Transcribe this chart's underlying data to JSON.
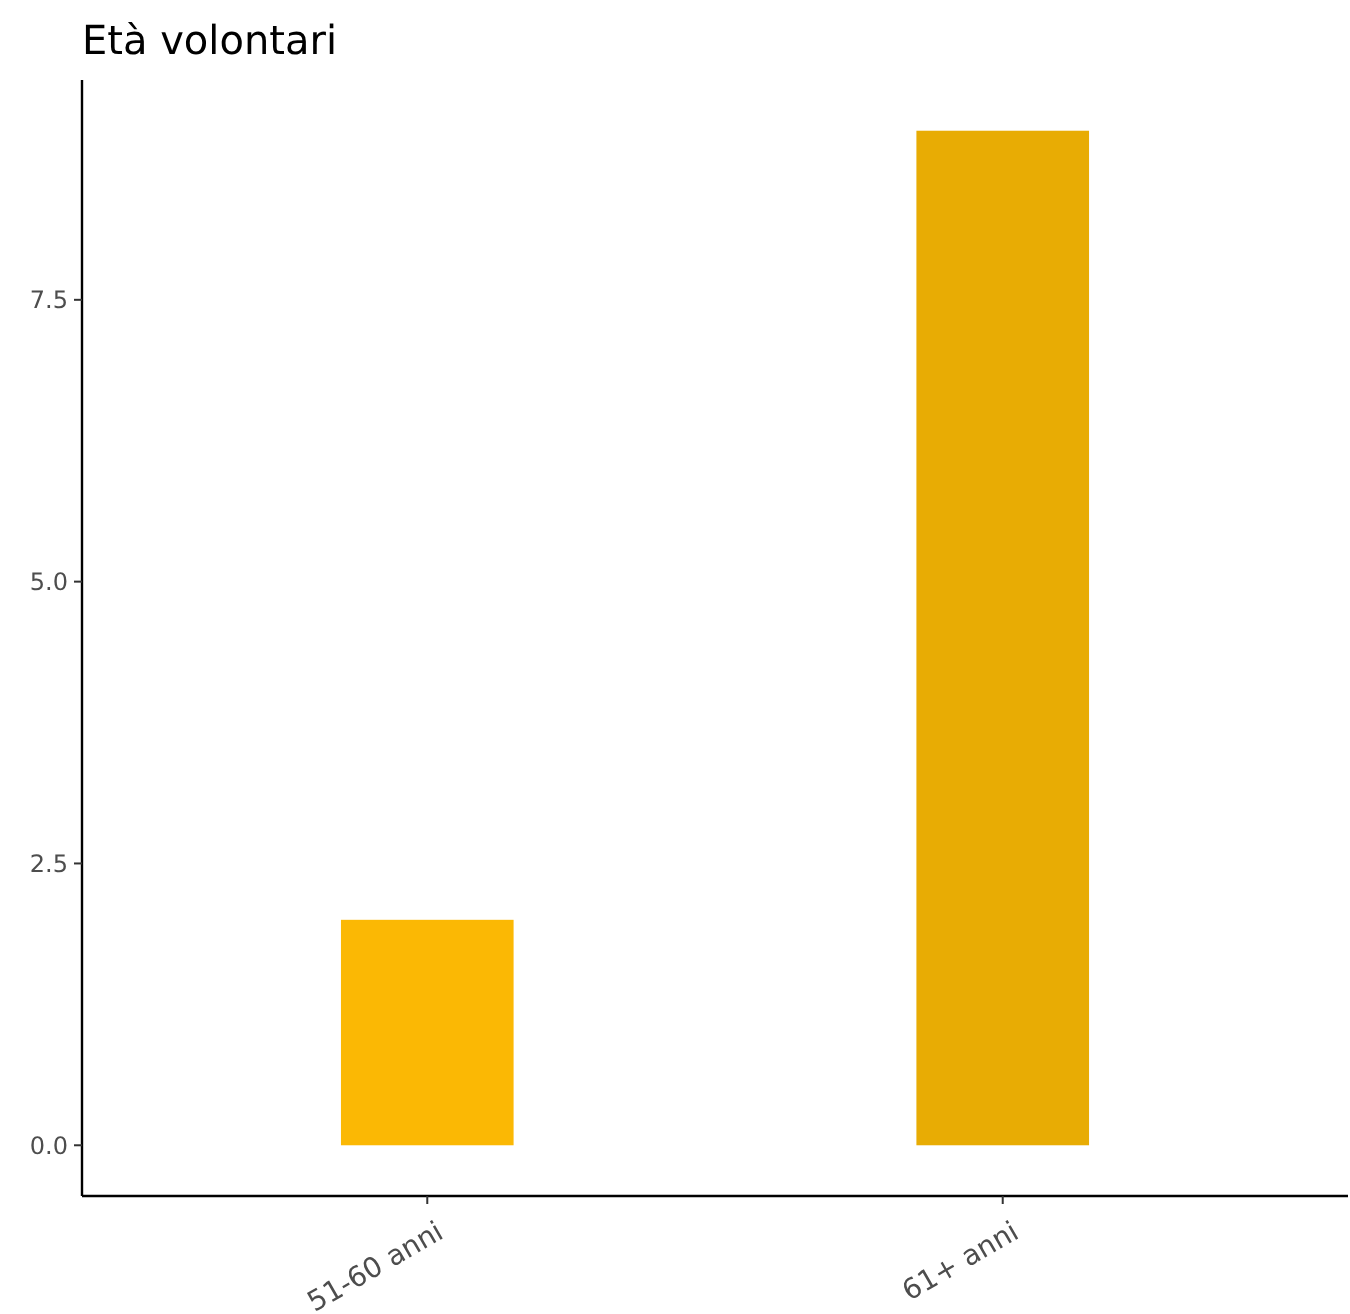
{
  "chart_data": {
    "type": "bar",
    "title": "Età volontari",
    "categories": [
      "51-60 anni",
      "61+ anni"
    ],
    "values": [
      2,
      9
    ],
    "colors": [
      "#fbb804",
      "#e8ac04"
    ],
    "ylim": [
      -0.45,
      9.45
    ],
    "yticks": [
      {
        "value": 0,
        "label": "0.0"
      },
      {
        "value": 2.5,
        "label": "2.5"
      },
      {
        "value": 5,
        "label": "5.0"
      },
      {
        "value": 7.5,
        "label": "7.5"
      }
    ],
    "grid": false
  }
}
